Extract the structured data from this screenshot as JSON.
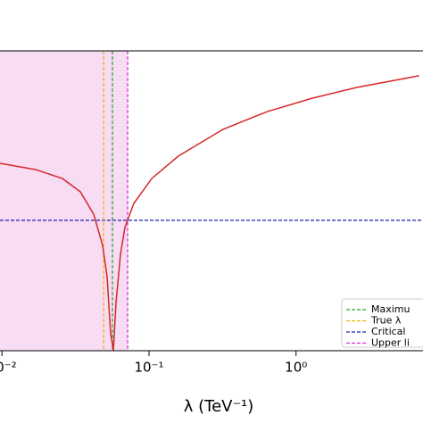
{
  "chart_data": {
    "type": "line",
    "xlabel": "λ (TeV⁻¹)",
    "xscale": "log",
    "xlim": [
      0.0097,
      7.3
    ],
    "xticks": [
      {
        "value": 0.01,
        "label": "10⁻²"
      },
      {
        "value": 0.1,
        "label": "10⁻¹"
      },
      {
        "value": 1,
        "label": "10⁰"
      }
    ],
    "ylim": [
      0,
      1
    ],
    "series": [
      {
        "name": null,
        "color": "#d62728",
        "x": [
          0.0097,
          0.017,
          0.0258,
          0.0341,
          0.0421,
          0.0484,
          0.0519,
          0.0548,
          0.0572,
          0.0597,
          0.064,
          0.0686,
          0.0788,
          0.1043,
          0.1585,
          0.318,
          0.64,
          1.285,
          2.58,
          6.86
        ],
        "values": [
          0.625,
          0.604,
          0.574,
          0.53,
          0.455,
          0.351,
          0.247,
          0.06,
          0.0,
          0.16,
          0.321,
          0.411,
          0.491,
          0.574,
          0.649,
          0.738,
          0.798,
          0.842,
          0.878,
          0.917
        ]
      }
    ],
    "vlines": [
      {
        "name": "Maximu",
        "color": "#2ca02c",
        "value": 0.0564
      },
      {
        "name": "True λ",
        "color": "#e6b800",
        "value": 0.0491
      },
      {
        "name": "Upper li",
        "color": "#d62ad6",
        "value": 0.0716
      }
    ],
    "hline": {
      "name": "Critical",
      "color": "#1f1fb4",
      "value": 0.435
    },
    "shade": {
      "color": "#f8dcf4",
      "range": [
        0.0097,
        0.0716
      ]
    }
  }
}
